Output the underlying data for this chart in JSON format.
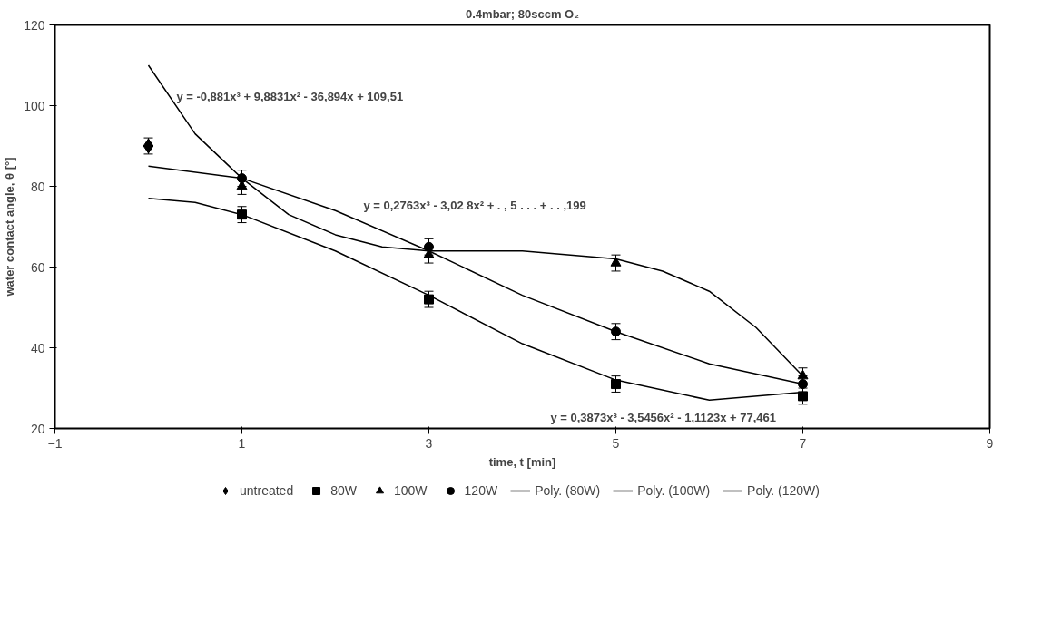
{
  "chart_data": {
    "type": "scatter",
    "title": "0.4mbar; 80sccm O₂",
    "xlabel": "time, t [min]",
    "ylabel": "water contact angle, θ [°]",
    "xlim": [
      -1,
      9
    ],
    "xticks": [
      -1,
      1,
      3,
      5,
      7,
      9
    ],
    "ylim": [
      20,
      120
    ],
    "yticks": [
      20,
      40,
      60,
      80,
      100,
      120
    ],
    "grid": false,
    "legend": "bottom",
    "series": [
      {
        "name": "untreated",
        "marker": "diamond",
        "color": "#000000",
        "x": [
          0
        ],
        "values": [
          90
        ],
        "errors": [
          2
        ]
      },
      {
        "name": "80W",
        "marker": "square",
        "color": "#000000",
        "x": [
          1,
          3,
          5,
          7
        ],
        "values": [
          73,
          52,
          31,
          28
        ],
        "errors": [
          2,
          2,
          2,
          2
        ]
      },
      {
        "name": "100W",
        "marker": "triangle",
        "color": "#000000",
        "x": [
          1,
          3,
          5,
          7
        ],
        "values": [
          80,
          63,
          61,
          33
        ],
        "errors": [
          2,
          2,
          2,
          2
        ]
      },
      {
        "name": "120W",
        "marker": "circle",
        "color": "#000000",
        "x": [
          1,
          3,
          5,
          7
        ],
        "values": [
          82,
          65,
          44,
          31
        ],
        "errors": [
          2,
          2,
          2,
          2
        ]
      },
      {
        "name": "Poly. (80W)",
        "type": "line",
        "marker": "none",
        "line_style": "solid",
        "color": "#000000",
        "x": [
          0,
          0.5,
          1,
          2,
          3,
          4,
          5,
          6,
          7
        ],
        "values": [
          77,
          76,
          73,
          64,
          53,
          41,
          32,
          27,
          29
        ]
      },
      {
        "name": "Poly. (100W)",
        "type": "line",
        "marker": "none",
        "line_style": "solid",
        "color": "#000000",
        "x": [
          0,
          0.5,
          1,
          1.5,
          2,
          2.5,
          3,
          4,
          5,
          5.5,
          6,
          6.5,
          7
        ],
        "values": [
          110,
          93,
          82,
          73,
          68,
          65,
          64,
          64,
          62,
          59,
          54,
          45,
          33
        ]
      },
      {
        "name": "Poly. (120W)",
        "type": "line",
        "marker": "none",
        "line_style": "solid",
        "color": "#000000",
        "x": [
          0,
          1,
          2,
          3,
          4,
          5,
          6,
          7
        ],
        "values": [
          85,
          82,
          74,
          64,
          53,
          44,
          36,
          31
        ]
      }
    ],
    "annotations": [
      "y = -0,881x³ + 9,8831x² - 36,894x + 109,51",
      "y = 0,2763x³ - 3,02  8x² + . , 5 . . . + . . ,199",
      "y = 0,3873x³ - 3,5456x² - 1,1123x + 77,461"
    ]
  }
}
